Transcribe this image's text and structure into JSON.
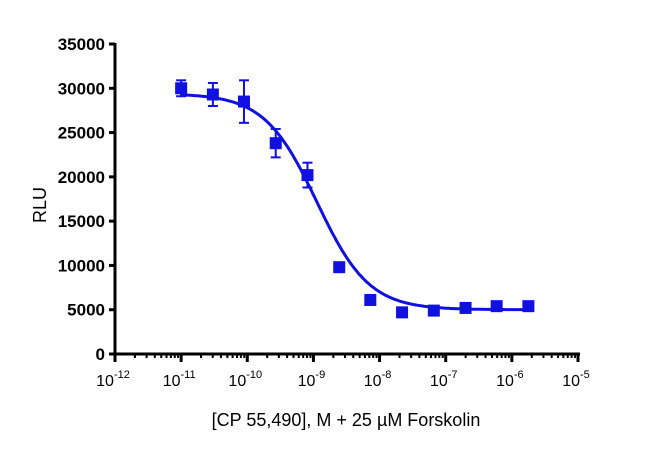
{
  "chart_data": {
    "type": "scatter",
    "title": "",
    "xlabel": "[CP 55,490], M + 25 µM Forskolin",
    "ylabel": "RLU",
    "xscale": "log",
    "xlim_log10": [
      -12,
      -5
    ],
    "ylim": [
      0,
      35000
    ],
    "yticks": [
      0,
      5000,
      10000,
      15000,
      20000,
      25000,
      30000,
      35000
    ],
    "ytick_labels": [
      "0",
      "5000",
      "10000",
      "15000",
      "20000",
      "25000",
      "30000",
      "35000"
    ],
    "xtick_exponents": [
      "-12",
      "-11",
      "-10",
      "-9",
      "-8",
      "-7",
      "-6",
      "-5"
    ],
    "grid": false,
    "color": "#1010e0",
    "series": [
      {
        "name": "CP 55,490",
        "x_log10": [
          -11,
          -10.52,
          -10.05,
          -9.57,
          -9.09,
          -8.61,
          -8.14,
          -7.66,
          -7.18,
          -6.7,
          -6.23,
          -5.75
        ],
        "y": [
          30000,
          29300,
          28500,
          23800,
          20200,
          9800,
          6100,
          4700,
          4900,
          5200,
          5400,
          5400
        ],
        "error": [
          900,
          1300,
          2400,
          1600,
          1400,
          400,
          300,
          300,
          300,
          200,
          200,
          200
        ]
      }
    ],
    "fit": {
      "model": "four-parameter logistic",
      "top": 29400,
      "bottom": 5000,
      "logIC50": -8.95,
      "hill": -1.1
    }
  }
}
